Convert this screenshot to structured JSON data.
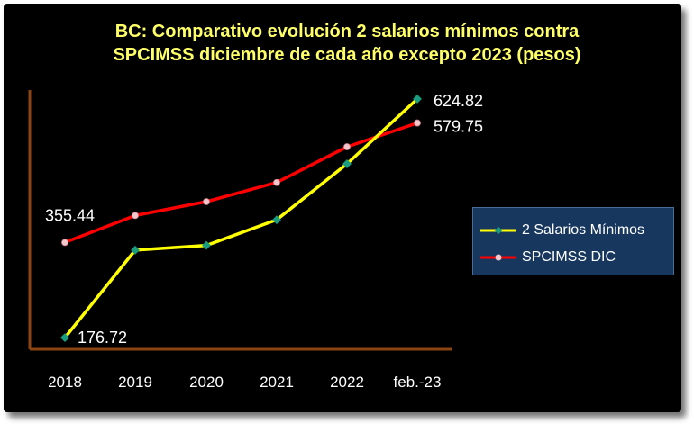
{
  "chart_data": {
    "type": "line",
    "title_line1": "BC: Comparativo evolución 2 salarios mínimos contra",
    "title_line2": "SPCIMSS diciembre de cada año excepto 2023 (pesos)",
    "categories": [
      "2018",
      "2019",
      "2020",
      "2021",
      "2022",
      "feb.-23"
    ],
    "series": [
      {
        "name": "2 Salarios Mínimos",
        "color": "#ffff00",
        "marker_color": "#1a9c80",
        "values": [
          176.72,
          341.0,
          350.0,
          398.0,
          503.0,
          624.82
        ]
      },
      {
        "name": "SPCIMSS DIC",
        "color": "#ff0000",
        "marker_color": "#f2c8cc",
        "values": [
          355.44,
          406.0,
          432.0,
          468.0,
          535.0,
          579.75
        ]
      }
    ],
    "data_labels": [
      {
        "series": 0,
        "point": 0,
        "text": "176.72"
      },
      {
        "series": 1,
        "point": 0,
        "text": "355.44"
      },
      {
        "series": 0,
        "point": 5,
        "text": "624.82"
      },
      {
        "series": 1,
        "point": 5,
        "text": "579.75"
      }
    ],
    "ylim": [
      160,
      650
    ],
    "grid": false,
    "legend_position": "right",
    "colors": {
      "background": "#000000",
      "title": "#ffff66",
      "axis": "#8b4513",
      "text": "#ffffff",
      "legend_bg": "#17375e"
    }
  }
}
